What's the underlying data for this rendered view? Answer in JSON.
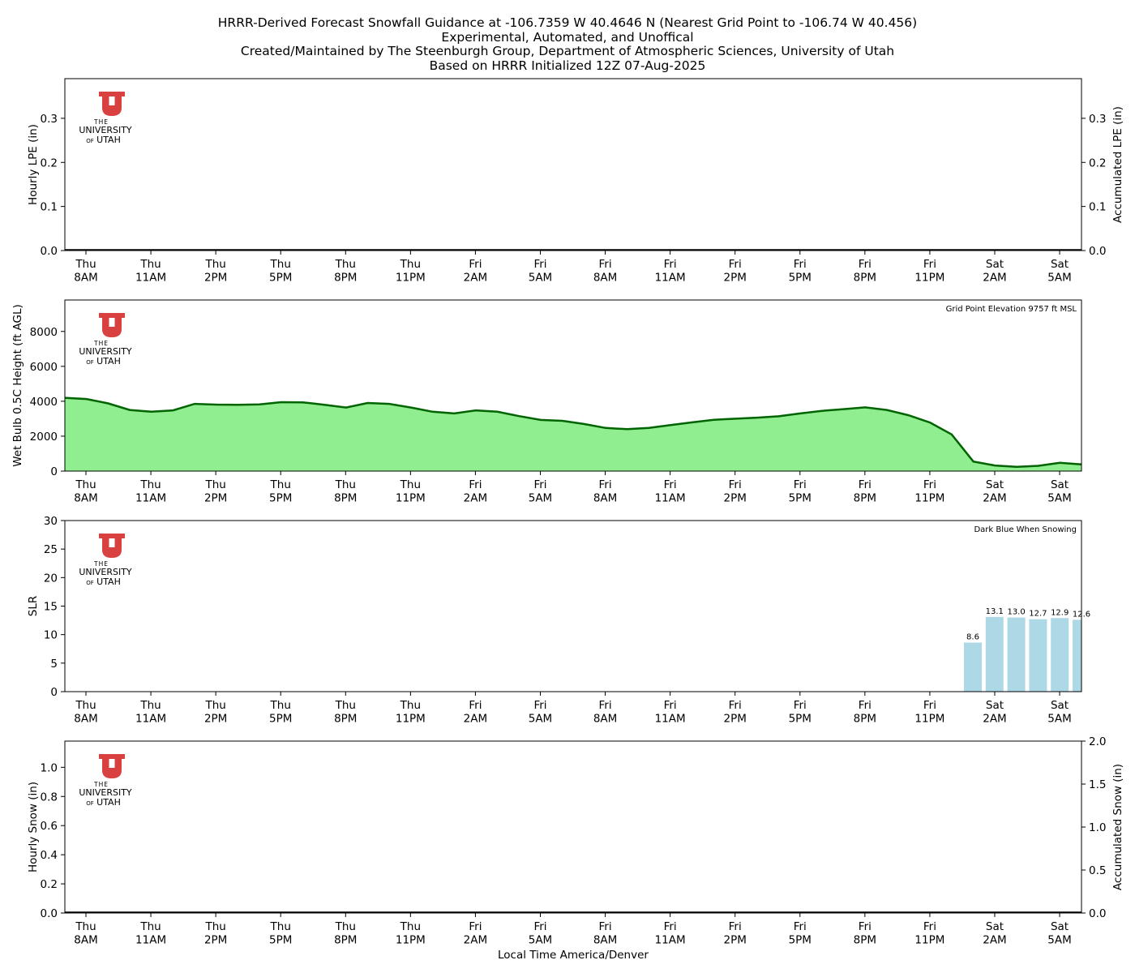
{
  "header": {
    "title_lines": [
      "HRRR-Derived Forecast Snowfall Guidance at -106.7359 W 40.4646 N (Nearest Grid Point to -106.74 W 40.456)",
      "Experimental, Automated, and Unoffical",
      "Created/Maintained by The Steenburgh Group, Department of Atmospheric Sciences, University of Utah",
      "Based on HRRR Initialized 12Z 07-Aug-2025"
    ]
  },
  "logo": {
    "line1": "THE",
    "line2": "UNIVERSITY",
    "line3_prefix": "OF",
    "line3": "UTAH",
    "color": "#d94040"
  },
  "colors": {
    "wetbulb_fill": "#90ee90",
    "wetbulb_line": "#006400",
    "slr_bar": "#add8e6",
    "axis": "#000000"
  },
  "time_axis": {
    "xlabel": "Local Time America/Denver",
    "ticks": [
      {
        "day": "Thu",
        "time": "8AM"
      },
      {
        "day": "Thu",
        "time": "11AM"
      },
      {
        "day": "Thu",
        "time": "2PM"
      },
      {
        "day": "Thu",
        "time": "5PM"
      },
      {
        "day": "Thu",
        "time": "8PM"
      },
      {
        "day": "Thu",
        "time": "11PM"
      },
      {
        "day": "Fri",
        "time": "2AM"
      },
      {
        "day": "Fri",
        "time": "5AM"
      },
      {
        "day": "Fri",
        "time": "8AM"
      },
      {
        "day": "Fri",
        "time": "11AM"
      },
      {
        "day": "Fri",
        "time": "2PM"
      },
      {
        "day": "Fri",
        "time": "5PM"
      },
      {
        "day": "Fri",
        "time": "8PM"
      },
      {
        "day": "Fri",
        "time": "11PM"
      },
      {
        "day": "Sat",
        "time": "2AM"
      },
      {
        "day": "Sat",
        "time": "5AM"
      }
    ]
  },
  "chart_data": [
    {
      "type": "bar",
      "id": "lpe",
      "ylabel": "Hourly LPE (in)",
      "ylabel_right": "Accumulated LPE (in)",
      "ylim": [
        0,
        0.39
      ],
      "yticks": [
        "0.0",
        "0.1",
        "0.2",
        "0.3"
      ],
      "yticks_right": [
        "0.0",
        "0.1",
        "0.2",
        "0.3"
      ],
      "series": [],
      "x": [],
      "values": []
    },
    {
      "type": "area",
      "id": "wetbulb",
      "ylabel": "Wet Bulb 0.5C Height (ft AGL)",
      "annotation": "Grid Point Elevation 9757 ft MSL",
      "ylim": [
        0,
        9800
      ],
      "yticks": [
        "0",
        "2000",
        "4000",
        "6000",
        "8000"
      ],
      "x_start_hour": 7,
      "x_step_hours": 1,
      "values": [
        4200,
        4130,
        3880,
        3500,
        3400,
        3480,
        3850,
        3810,
        3800,
        3820,
        3950,
        3940,
        3800,
        3640,
        3900,
        3850,
        3640,
        3400,
        3300,
        3480,
        3400,
        3150,
        2930,
        2880,
        2700,
        2470,
        2400,
        2470,
        2640,
        2790,
        2940,
        3000,
        3060,
        3140,
        3300,
        3450,
        3550,
        3650,
        3500,
        3200,
        2780,
        2100,
        550,
        320,
        240,
        300,
        480,
        380
      ]
    },
    {
      "type": "bar",
      "id": "slr",
      "ylabel": "SLR",
      "annotation": "Dark Blue When Snowing",
      "ylim": [
        0,
        30
      ],
      "yticks": [
        "0",
        "5",
        "10",
        "15",
        "20",
        "25",
        "30"
      ],
      "x_hours": [
        49,
        50,
        51,
        52,
        53,
        54
      ],
      "values": [
        8.6,
        13.1,
        13.0,
        12.7,
        12.9,
        12.6
      ],
      "labels": [
        "8.6",
        "13.1",
        "13.0",
        "12.7",
        "12.9",
        "12.6"
      ]
    },
    {
      "type": "bar",
      "id": "snow",
      "ylabel": "Hourly Snow (in)",
      "ylabel_right": "Accumulated Snow (in)",
      "ylim": [
        0,
        1.18
      ],
      "yticks": [
        "0.0",
        "0.2",
        "0.4",
        "0.6",
        "0.8",
        "1.0"
      ],
      "ylim_right": [
        0,
        2.0
      ],
      "yticks_right": [
        "0.0",
        "0.5",
        "1.0",
        "1.5",
        "2.0"
      ],
      "series": [],
      "x": [],
      "values": []
    }
  ]
}
